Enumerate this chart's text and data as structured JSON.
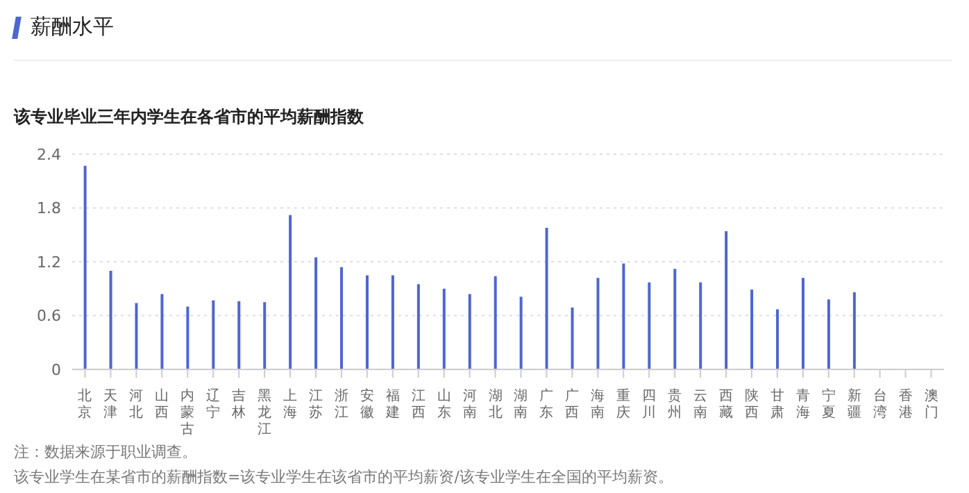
{
  "chart_data": {
    "type": "bar",
    "title": "薪酬水平",
    "subtitle": "该专业毕业三年内学生在各省市的平均薪酬指数",
    "categories": [
      "北京",
      "天津",
      "河北",
      "山西",
      "内蒙古",
      "辽宁",
      "吉林",
      "黑龙江",
      "上海",
      "江苏",
      "浙江",
      "安徽",
      "福建",
      "江西",
      "山东",
      "河南",
      "湖北",
      "湖南",
      "广东",
      "广西",
      "海南",
      "重庆",
      "四川",
      "贵州",
      "云南",
      "西藏",
      "陕西",
      "甘肃",
      "青海",
      "宁夏",
      "新疆",
      "台湾",
      "香港",
      "澳门"
    ],
    "values": [
      2.27,
      1.1,
      0.74,
      0.84,
      0.7,
      0.77,
      0.76,
      0.75,
      1.72,
      1.25,
      1.14,
      1.05,
      1.05,
      0.95,
      0.9,
      0.84,
      1.04,
      0.81,
      1.58,
      0.69,
      1.02,
      1.18,
      0.97,
      1.12,
      0.97,
      1.54,
      0.89,
      0.67,
      1.02,
      0.78,
      0.86,
      null,
      null,
      null
    ],
    "color": "#4d66d4",
    "ylim": [
      0,
      2.4
    ],
    "yticks": [
      0,
      0.6,
      1.2,
      1.8,
      2.4
    ],
    "grid": "y",
    "legend": false,
    "annotations": [
      "注：数据来源于职业调查。",
      "该专业学生在某省市的薪酬指数=该专业学生在该省市的平均薪资/该专业学生在全国的平均薪资。"
    ]
  }
}
